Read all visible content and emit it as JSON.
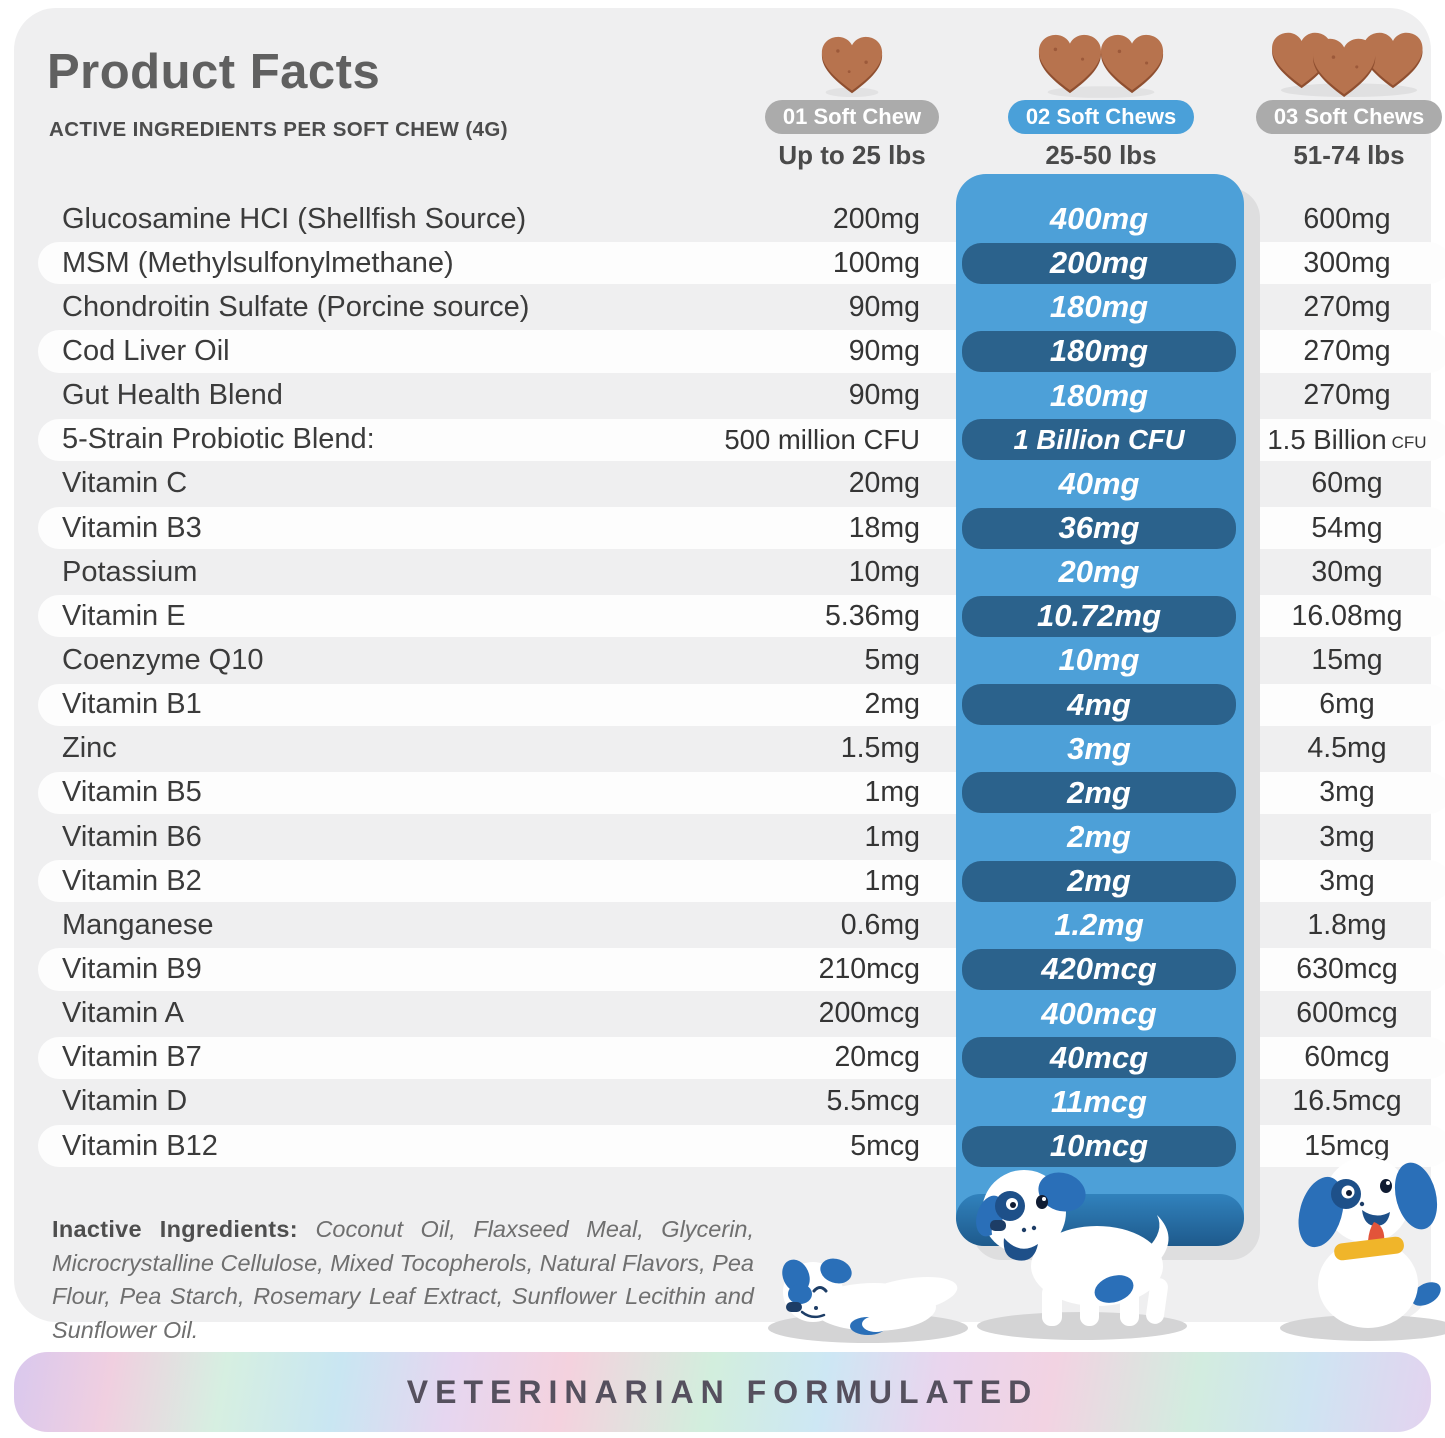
{
  "header": {
    "title": "Product Facts",
    "subtitle": "ACTIVE INGREDIENTS PER SOFT CHEW (4G)",
    "columns": [
      {
        "badge": "01 Soft Chew",
        "weight": "Up to 25 lbs",
        "chews": 1,
        "badge_color": "#ababab"
      },
      {
        "badge": "02 Soft Chews",
        "weight": "25-50 lbs",
        "chews": 2,
        "badge_color": "#4aa0d9"
      },
      {
        "badge": "03 Soft Chews",
        "weight": "51-74 lbs",
        "chews": 3,
        "badge_color": "#ababab"
      }
    ]
  },
  "table": {
    "rows": [
      {
        "name": "Glucosamine HCI (Shellfish Source)",
        "v1": "200mg",
        "v2": "400mg",
        "v3": "600mg"
      },
      {
        "name": "MSM (Methylsulfonylmethane)",
        "v1": "100mg",
        "v2": "200mg",
        "v3": "300mg"
      },
      {
        "name": "Chondroitin Sulfate (Porcine source)",
        "v1": "90mg",
        "v2": "180mg",
        "v3": "270mg"
      },
      {
        "name": "Cod Liver Oil",
        "v1": "90mg",
        "v2": "180mg",
        "v3": "270mg"
      },
      {
        "name": "Gut Health Blend",
        "v1": "90mg",
        "v2": "180mg",
        "v3": "270mg"
      },
      {
        "name": "5-Strain Probiotic Blend:",
        "v1": "500 million CFU",
        "v2": "1 Billion CFU",
        "v3": "1.5 Billion CFU",
        "cfu": true
      },
      {
        "name": "Vitamin C",
        "v1": "20mg",
        "v2": "40mg",
        "v3": "60mg"
      },
      {
        "name": "Vitamin B3",
        "v1": "18mg",
        "v2": "36mg",
        "v3": "54mg"
      },
      {
        "name": "Potassium",
        "v1": "10mg",
        "v2": "20mg",
        "v3": "30mg"
      },
      {
        "name": "Vitamin E",
        "v1": "5.36mg",
        "v2": "10.72mg",
        "v3": "16.08mg"
      },
      {
        "name": "Coenzyme Q10",
        "v1": "5mg",
        "v2": "10mg",
        "v3": "15mg"
      },
      {
        "name": "Vitamin B1",
        "v1": "2mg",
        "v2": "4mg",
        "v3": "6mg"
      },
      {
        "name": "Zinc",
        "v1": "1.5mg",
        "v2": "3mg",
        "v3": "4.5mg"
      },
      {
        "name": "Vitamin B5",
        "v1": "1mg",
        "v2": "2mg",
        "v3": "3mg"
      },
      {
        "name": "Vitamin B6",
        "v1": "1mg",
        "v2": "2mg",
        "v3": "3mg"
      },
      {
        "name": "Vitamin B2",
        "v1": "1mg",
        "v2": "2mg",
        "v3": "3mg"
      },
      {
        "name": "Manganese",
        "v1": "0.6mg",
        "v2": "1.2mg",
        "v3": "1.8mg"
      },
      {
        "name": "Vitamin B9",
        "v1": "210mcg",
        "v2": "420mcg",
        "v3": "630mcg"
      },
      {
        "name": "Vitamin A",
        "v1": "200mcg",
        "v2": "400mcg",
        "v3": "600mcg"
      },
      {
        "name": "Vitamin B7",
        "v1": "20mcg",
        "v2": "40mcg",
        "v3": "60mcg"
      },
      {
        "name": "Vitamin D",
        "v1": "5.5mcg",
        "v2": "11mcg",
        "v3": "16.5mcg"
      },
      {
        "name": "Vitamin B12",
        "v1": "5mcg",
        "v2": "10mcg",
        "v3": "15mcg"
      }
    ]
  },
  "inactive": {
    "label": "Inactive Ingredients:",
    "text": "Coconut Oil, Flaxseed Meal, Glycerin, Microcrystalline Cellulose, Mixed Tocopherols, Natural Flavors, Pea Flour, Pea Starch, Rosemary Leaf Extract, Sunflower Lecithin and Sunflower Oil."
  },
  "banner": {
    "text": "VETERINARIAN FORMULATED"
  },
  "colors": {
    "card_bg": "#efeff0",
    "panel_blue": "#4da0d8",
    "value_pill_navy": "#2b628c",
    "badge_gray": "#ababab",
    "badge_blue": "#4aa0d9",
    "chew_brown": "#b7734e",
    "banner_text": "#55505e"
  }
}
